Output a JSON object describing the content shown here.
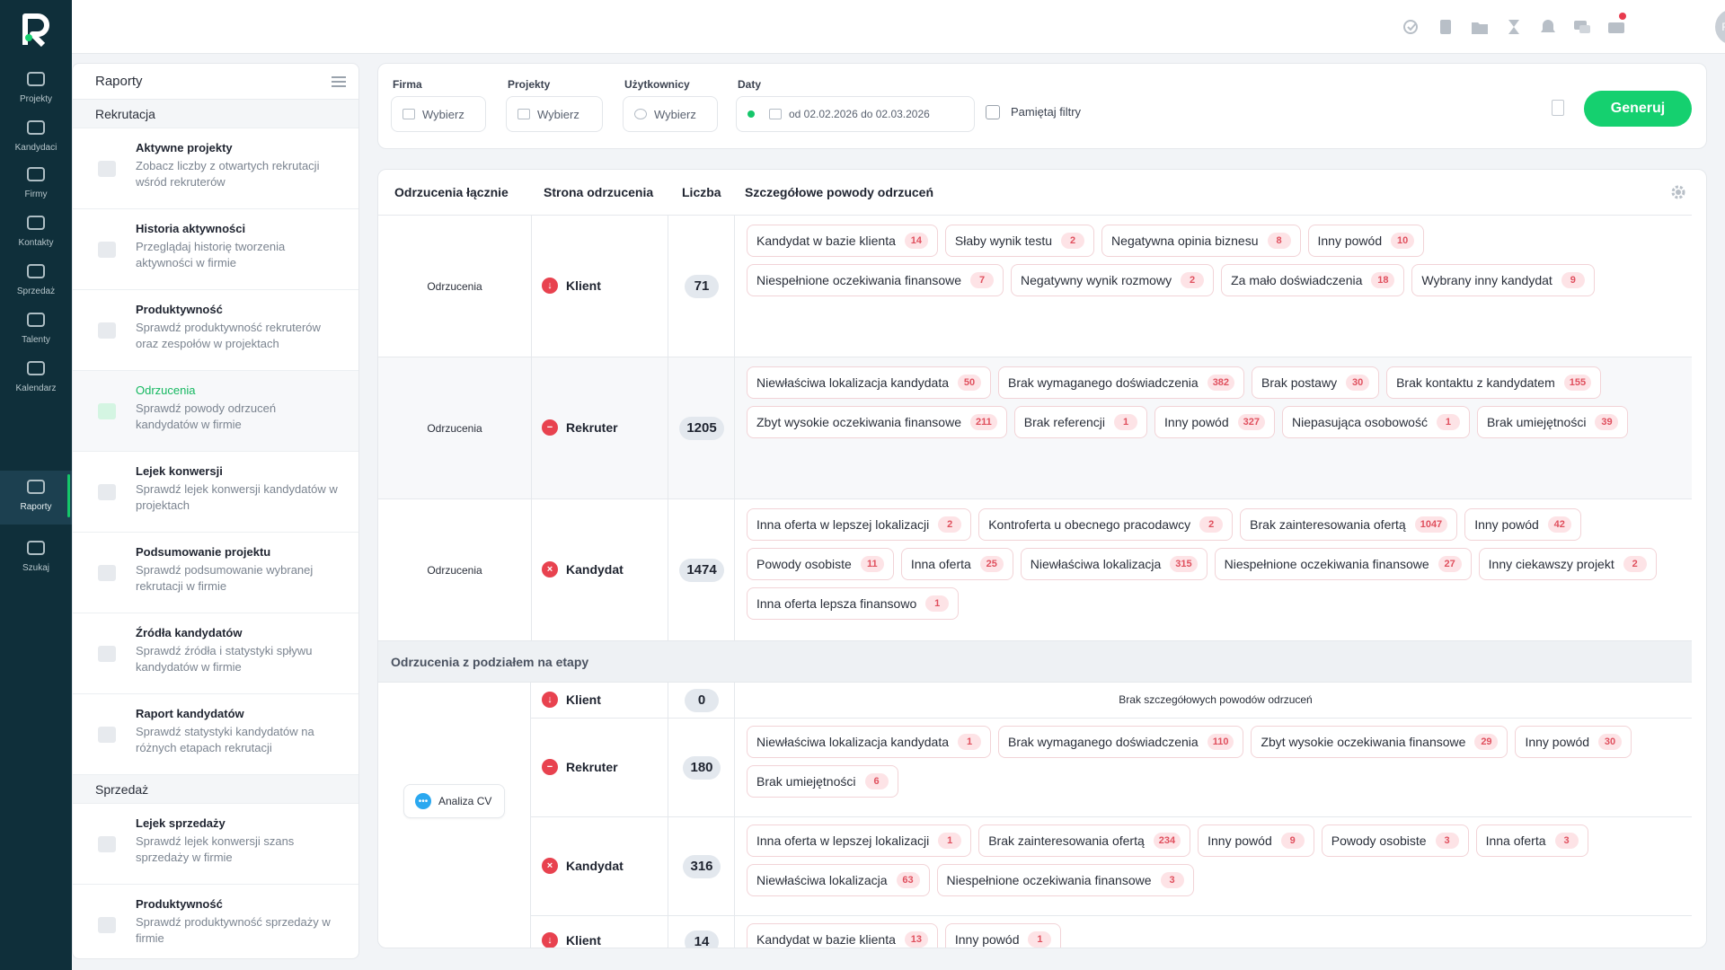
{
  "nav": [
    {
      "label": "Projekty",
      "icon": "monitor-icon"
    },
    {
      "label": "Kandydaci",
      "icon": "people-icon"
    },
    {
      "label": "Firmy",
      "icon": "building-icon"
    },
    {
      "label": "Kontakty",
      "icon": "contact-icon"
    },
    {
      "label": "Sprzedaż",
      "icon": "sales-icon"
    },
    {
      "label": "Talenty",
      "icon": "list-icon"
    },
    {
      "label": "Kalendarz",
      "icon": "calendar-icon"
    },
    {
      "label": "Raporty",
      "icon": "chart-icon",
      "active": true
    },
    {
      "label": "Szukaj",
      "icon": "search-icon"
    }
  ],
  "user": {
    "initials": "REC"
  },
  "reports": {
    "title": "Raporty",
    "section_recruitment": "Rekrutacja",
    "section_sales": "Sprzedaż",
    "recruitment_items": [
      {
        "title": "Aktywne projekty",
        "desc": "Zobacz liczby z otwartych rekrutacji wśród rekruterów"
      },
      {
        "title": "Historia aktywności",
        "desc": "Przeglądaj historię tworzenia aktywności w firmie"
      },
      {
        "title": "Produktywność",
        "desc": "Sprawdź produktywność rekruterów oraz zespołów w projektach"
      },
      {
        "title": "Odrzucenia",
        "desc": "Sprawdź powody odrzuceń kandydatów w firmie"
      },
      {
        "title": "Lejek konwersji",
        "desc": "Sprawdź lejek konwersji kandydatów w projektach"
      },
      {
        "title": "Podsumowanie projektu",
        "desc": "Sprawdź podsumowanie wybranej rekrutacji w firmie"
      },
      {
        "title": "Źródła kandydatów",
        "desc": "Sprawdź źródła i statystyki spływu kandydatów w firmie"
      },
      {
        "title": "Raport kandydatów",
        "desc": "Sprawdź statystyki kandydatów na różnych etapach rekrutacji"
      }
    ],
    "sales_items": [
      {
        "title": "Lejek sprzedaży",
        "desc": "Sprawdź lejek konwersji szans sprzedaży w firmie"
      },
      {
        "title": "Produktywność",
        "desc": "Sprawdź produktywność sprzedaży w firmie"
      }
    ]
  },
  "filters": {
    "firm_label": "Firma",
    "project_label": "Projekty",
    "users_label": "Użytkownicy",
    "dates_label": "Daty",
    "choose": "Wybierz",
    "date_range": "od 02.02.2026 do 02.03.2026",
    "remember": "Pamiętaj filtry",
    "generate": "Generuj"
  },
  "table": {
    "headers": [
      "Odrzucenia łącznie",
      "Strona odrzucenia",
      "Liczba",
      "Szczegółowe powody odrzuceń"
    ],
    "totals": [
      {
        "group": "Odrzucenia",
        "side": "Klient",
        "count": "71",
        "reasons": [
          [
            "Kandydat w bazie klienta",
            "14"
          ],
          [
            "Słaby wynik testu",
            "2"
          ],
          [
            "Negatywna opinia biznesu",
            "8"
          ],
          [
            "Inny powód",
            "10"
          ],
          [
            "Niespełnione oczekiwania finansowe",
            "7"
          ],
          [
            "Negatywny wynik rozmowy",
            "2"
          ],
          [
            "Za mało doświadczenia",
            "18"
          ],
          [
            "Wybrany inny kandydat",
            "9"
          ]
        ]
      },
      {
        "group": "Odrzucenia",
        "side": "Rekruter",
        "count": "1205",
        "reasons": [
          [
            "Niewłaściwa lokalizacja kandydata",
            "50"
          ],
          [
            "Brak wymaganego doświadczenia",
            "382"
          ],
          [
            "Brak postawy",
            "30"
          ],
          [
            "Brak kontaktu z kandydatem",
            "155"
          ],
          [
            "Zbyt wysokie oczekiwania finansowe",
            "211"
          ],
          [
            "Brak referencji",
            "1"
          ],
          [
            "Inny powód",
            "327"
          ],
          [
            "Niepasująca osobowość",
            "1"
          ],
          [
            "Brak umiejętności",
            "39"
          ]
        ]
      },
      {
        "group": "Odrzucenia",
        "side": "Kandydat",
        "count": "1474",
        "reasons": [
          [
            "Inna oferta w lepszej lokalizacji",
            "2"
          ],
          [
            "Kontroferta u obecnego pracodawcy",
            "2"
          ],
          [
            "Brak zainteresowania ofertą",
            "1047"
          ],
          [
            "Inny powód",
            "42"
          ],
          [
            "Powody osobiste",
            "11"
          ],
          [
            "Inna oferta",
            "25"
          ],
          [
            "Niewłaściwa lokalizacja",
            "315"
          ],
          [
            "Niespełnione oczekiwania finansowe",
            "27"
          ],
          [
            "Inny ciekawszy projekt",
            "2"
          ],
          [
            "Inna oferta lepsza finansowo",
            "1"
          ]
        ]
      }
    ],
    "stages_label": "Odrzucenia z podziałem na etapy",
    "stage_name": "Analiza CV",
    "no_reasons": "Brak szczegółowych powodów odrzuceń",
    "stage_rows": [
      {
        "side": "Klient",
        "count": "0",
        "reasons": []
      },
      {
        "side": "Rekruter",
        "count": "180",
        "reasons": [
          [
            "Niewłaściwa lokalizacja kandydata",
            "1"
          ],
          [
            "Brak wymaganego doświadczenia",
            "110"
          ],
          [
            "Zbyt wysokie oczekiwania finansowe",
            "29"
          ],
          [
            "Inny powód",
            "30"
          ],
          [
            "Brak umiejętności",
            "6"
          ]
        ]
      },
      {
        "side": "Kandydat",
        "count": "316",
        "reasons": [
          [
            "Inna oferta w lepszej lokalizacji",
            "1"
          ],
          [
            "Brak zainteresowania ofertą",
            "234"
          ],
          [
            "Inny powód",
            "9"
          ],
          [
            "Powody osobiste",
            "3"
          ],
          [
            "Inna oferta",
            "3"
          ],
          [
            "Niewłaściwa lokalizacja",
            "63"
          ],
          [
            "Niespełnione oczekiwania finansowe",
            "3"
          ]
        ]
      },
      {
        "side": "Klient",
        "count": "14",
        "reasons": [
          [
            "Kandydat w bazie klienta",
            "13"
          ],
          [
            "Inny powód",
            "1"
          ]
        ]
      }
    ]
  },
  "colors": {
    "accent": "#15d06f",
    "nav_bg": "#0f2f3a",
    "danger": "#e8424f"
  }
}
